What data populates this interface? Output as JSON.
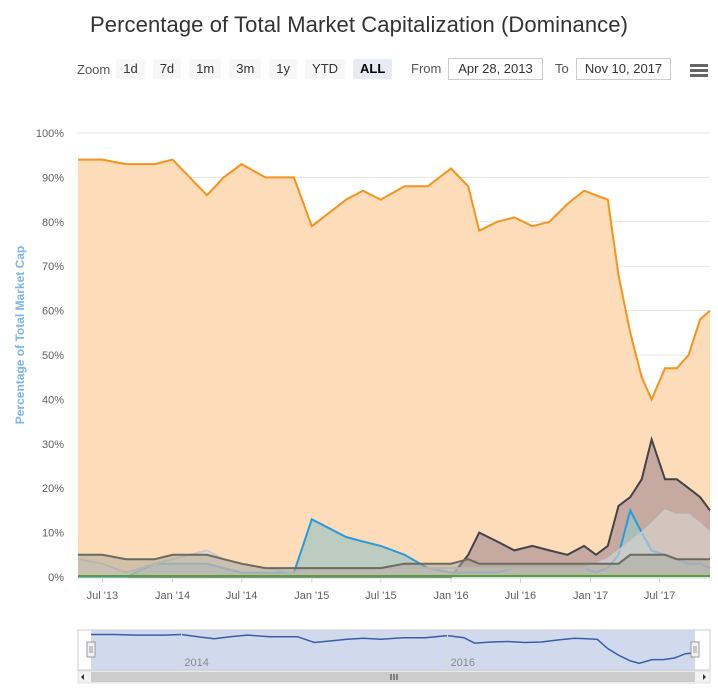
{
  "title": "Percentage of Total Market Capitalization (Dominance)",
  "zoom": {
    "label": "Zoom",
    "buttons": [
      "1d",
      "7d",
      "1m",
      "3m",
      "1y",
      "YTD",
      "ALL"
    ],
    "active": "ALL"
  },
  "range": {
    "from_label": "From",
    "from_value": "Apr 28, 2013",
    "to_label": "To",
    "to_value": "Nov 10, 2017"
  },
  "menu_icon": "hamburger-menu-icon",
  "navigator": {
    "tick_labels": [
      "2014",
      "2016"
    ]
  },
  "colors": {
    "bitcoin": "#f7931a",
    "bitcoin_fill": "#fddcb9",
    "ethereum": "#434348",
    "ripple": "#2a9bd9",
    "litecoin": "#c9c9c9",
    "others_dark": "#6b6b5f",
    "navigator_line": "#3b5cab",
    "navigator_fill": "#c6d1e8",
    "axis_label": "#7cb5ec"
  },
  "chart_data": {
    "type": "area",
    "title": "Percentage of Total Market Capitalization (Dominance)",
    "ylabel": "Percentage of Total Market Cap",
    "xlabel": "",
    "ylim": [
      0,
      100
    ],
    "yticks": [
      "0%",
      "10%",
      "20%",
      "30%",
      "40%",
      "50%",
      "60%",
      "70%",
      "80%",
      "90%",
      "100%"
    ],
    "xticks": [
      "Jul '13",
      "Jan '14",
      "Jul '14",
      "Jan '15",
      "Jul '15",
      "Jan '16",
      "Jul '16",
      "Jan '17",
      "Jul '17"
    ],
    "x": [
      "2013-04-28",
      "2013-07-01",
      "2013-09-01",
      "2013-11-15",
      "2014-01-01",
      "2014-02-15",
      "2014-04-01",
      "2014-05-15",
      "2014-07-01",
      "2014-09-01",
      "2014-11-15",
      "2015-01-01",
      "2015-02-15",
      "2015-04-01",
      "2015-05-15",
      "2015-07-01",
      "2015-09-01",
      "2015-11-01",
      "2016-01-01",
      "2016-02-15",
      "2016-03-15",
      "2016-05-01",
      "2016-06-15",
      "2016-08-01",
      "2016-09-15",
      "2016-11-01",
      "2016-12-15",
      "2017-01-15",
      "2017-02-15",
      "2017-03-15",
      "2017-04-15",
      "2017-05-15",
      "2017-06-10",
      "2017-07-15",
      "2017-08-15",
      "2017-09-15",
      "2017-10-15",
      "2017-11-10"
    ],
    "series": [
      {
        "values": [
          94,
          94,
          93,
          93,
          94,
          90,
          86,
          90,
          93,
          90,
          90,
          79,
          82,
          85,
          87,
          85,
          88,
          88,
          92,
          88,
          78,
          80,
          81,
          79,
          80,
          84,
          87,
          86,
          85,
          68,
          55,
          45,
          40,
          47,
          47,
          50,
          58,
          60
        ]
      },
      {
        "values": [
          0,
          0,
          0,
          0,
          0,
          0,
          0,
          0,
          0,
          0,
          0,
          0,
          0,
          0,
          0,
          0,
          0,
          0,
          0,
          5,
          10,
          8,
          6,
          7,
          6,
          5,
          7,
          5,
          7,
          16,
          18,
          22,
          31,
          22,
          22,
          20,
          18,
          15
        ]
      },
      {
        "values": [
          0,
          0,
          0,
          3,
          3,
          3,
          3,
          2,
          1,
          1,
          1,
          13,
          11,
          9,
          8,
          7,
          5,
          2,
          1,
          1,
          1,
          1,
          2,
          2,
          2,
          2,
          2,
          1,
          2,
          5,
          15,
          10,
          6,
          5,
          4,
          3,
          3,
          2
        ]
      },
      {
        "values": [
          4,
          3,
          1,
          3,
          4,
          5,
          6,
          4,
          3,
          2,
          1,
          2,
          2,
          2,
          2,
          2,
          2,
          2,
          2,
          2,
          2,
          2,
          2,
          2,
          2,
          2,
          2,
          3,
          4,
          6,
          8,
          10,
          12,
          15,
          14,
          14,
          12,
          10
        ]
      },
      {
        "values": [
          5,
          5,
          4,
          4,
          5,
          5,
          5,
          4,
          3,
          2,
          2,
          2,
          2,
          2,
          2,
          2,
          3,
          3,
          3,
          4,
          3,
          3,
          3,
          3,
          3,
          3,
          3,
          3,
          3,
          3,
          5,
          5,
          5,
          5,
          4,
          4,
          4,
          4
        ]
      }
    ],
    "grid": true,
    "legend": "none"
  }
}
